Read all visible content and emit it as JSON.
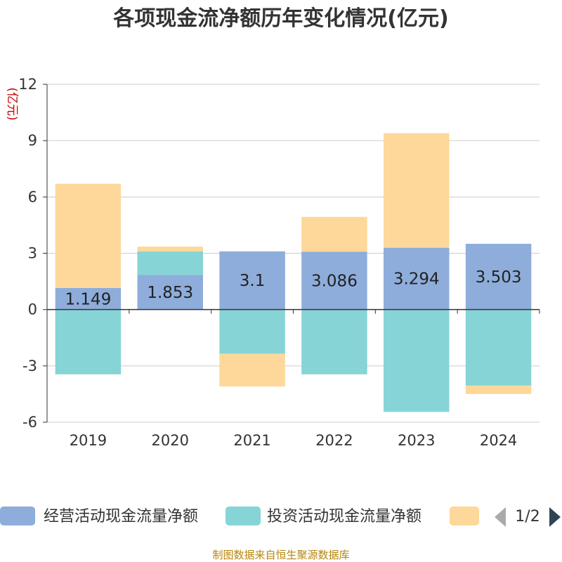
{
  "chart_data": {
    "type": "bar",
    "stacked": true,
    "title": "各项现金流净额历年变化情况(亿元)",
    "ylabel": "(亿元)",
    "xlabel": "",
    "categories": [
      "2019",
      "2020",
      "2021",
      "2022",
      "2023",
      "2024"
    ],
    "ylim": [
      -6,
      12
    ],
    "yticks": [
      -6,
      -3,
      0,
      3,
      6,
      9,
      12
    ],
    "grid": true,
    "legend_position": "bottom",
    "series": [
      {
        "name": "经营活动现金流量净额",
        "color": "#8eaddb",
        "values": [
          1.149,
          1.853,
          3.1,
          3.086,
          3.294,
          3.503
        ],
        "labels": [
          "1.149",
          "1.853",
          "3.1",
          "3.086",
          "3.294",
          "3.503"
        ]
      },
      {
        "name": "投资活动现金流量净额",
        "color": "#86d4d6",
        "values": [
          -3.45,
          1.25,
          -2.35,
          -3.45,
          -5.45,
          -4.05
        ]
      },
      {
        "name": "",
        "color": "#fdd89a",
        "values": [
          5.55,
          0.25,
          -1.75,
          1.85,
          6.1,
          -0.45
        ]
      }
    ]
  },
  "legend": {
    "items": [
      "经营活动现金流量净额",
      "投资活动现金流量净额",
      ""
    ],
    "page": "1/2"
  },
  "source": "制图数据来自恒生聚源数据库"
}
